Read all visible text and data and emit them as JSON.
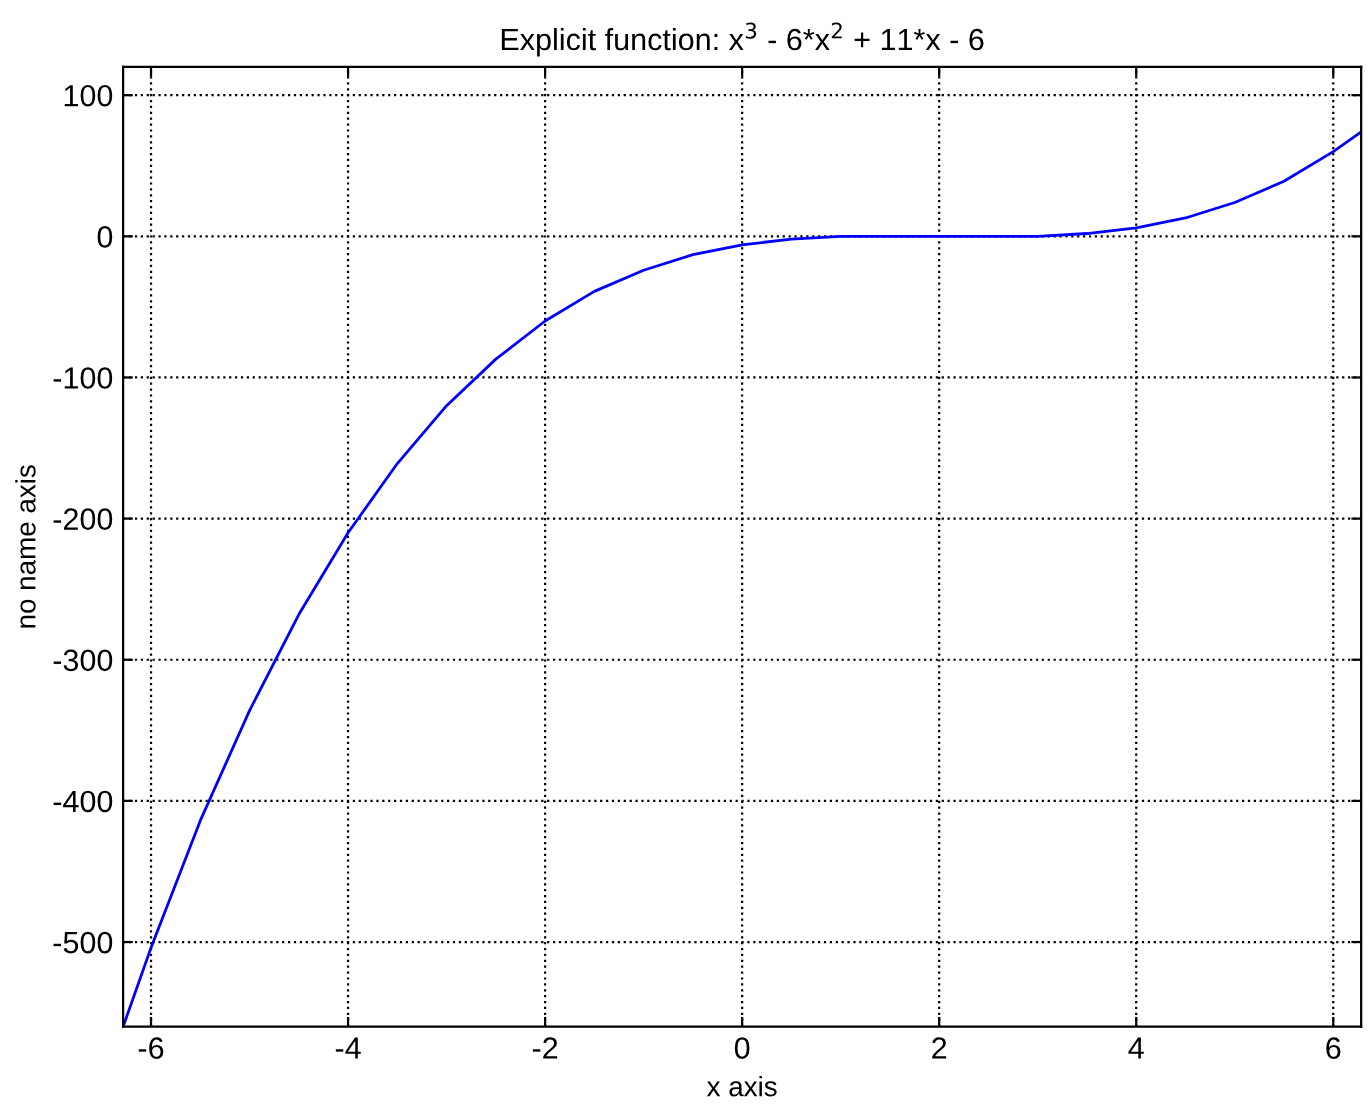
{
  "chart_data": {
    "type": "line",
    "title": "Explicit function: x$^{3}$ - 6*x$^{2}$ + 11*x - 6",
    "xlabel": "x axis",
    "ylabel": "no name axis",
    "x": [
      -6.2832,
      -6,
      -5.5,
      -5,
      -4.5,
      -4,
      -3.5,
      -3,
      -2.5,
      -2,
      -1.5,
      -1,
      -0.5,
      0,
      0.5,
      1,
      1.5,
      2,
      2.5,
      3,
      3.5,
      4,
      4.5,
      5,
      5.5,
      6,
      6.2832
    ],
    "series": [
      {
        "color": "#0000ff",
        "values": [
          -560,
          -504,
          -414,
          -336,
          -268,
          -210,
          -161,
          -120,
          -87,
          -60,
          -39,
          -24,
          -13,
          -6,
          -2,
          0,
          0,
          0,
          0,
          0,
          2,
          6,
          13,
          24,
          39,
          60,
          74
        ]
      }
    ],
    "xlim": [
      -6.2832,
      6.2832
    ],
    "ylim": [
      -560,
      120
    ],
    "xticks": [
      -6,
      -4,
      -2,
      0,
      2,
      4,
      6
    ],
    "yticks": [
      -500,
      -400,
      -300,
      -200,
      -100,
      0,
      100
    ],
    "grid": true,
    "line_style": "solid"
  }
}
